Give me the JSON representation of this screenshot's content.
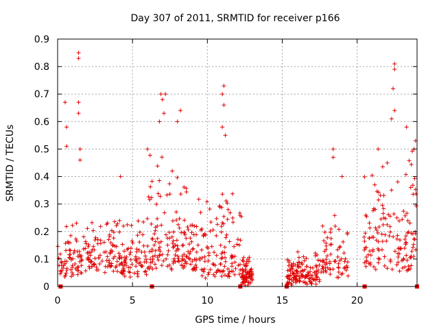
{
  "chart_data": {
    "type": "scatter",
    "title": "Day 307 of 2011, SRMTID for receiver p166",
    "xlabel": "GPS time / hours",
    "ylabel": "SRMTID / TECUs",
    "xlim": [
      0,
      24
    ],
    "ylim": [
      0,
      0.9
    ],
    "x_ticks": [
      "0",
      "5",
      "10",
      "15",
      "20"
    ],
    "y_ticks": [
      "0",
      "0.1",
      "0.2",
      "0.3",
      "0.4",
      "0.5",
      "0.6",
      "0.7",
      "0.8",
      "0.9"
    ],
    "grid": true,
    "marker": "+",
    "color": "#e00000",
    "baseline_markers_x": [
      0.2,
      6.3,
      12.2,
      15.3,
      20.5,
      24.0
    ],
    "clusters": [
      {
        "x_range": [
          0.0,
          1.8
        ],
        "y_range": [
          0.03,
          0.25
        ],
        "count": 70
      },
      {
        "x_range": [
          1.8,
          4.0
        ],
        "y_range": [
          0.05,
          0.28
        ],
        "count": 90
      },
      {
        "x_range": [
          4.0,
          6.0
        ],
        "y_range": [
          0.03,
          0.3
        ],
        "count": 85
      },
      {
        "x_range": [
          6.0,
          9.0
        ],
        "y_range": [
          0.05,
          0.55
        ],
        "count": 140
      },
      {
        "x_range": [
          9.0,
          11.0
        ],
        "y_range": [
          0.02,
          0.35
        ],
        "count": 80
      },
      {
        "x_range": [
          11.0,
          12.3
        ],
        "y_range": [
          0.02,
          0.4
        ],
        "count": 55
      },
      {
        "x_range": [
          12.3,
          13.0
        ],
        "y_range": [
          0.0,
          0.12
        ],
        "count": 70
      },
      {
        "x_range": [
          15.3,
          17.5
        ],
        "y_range": [
          0.0,
          0.12
        ],
        "count": 130
      },
      {
        "x_range": [
          17.5,
          19.5
        ],
        "y_range": [
          0.02,
          0.3
        ],
        "count": 70
      },
      {
        "x_range": [
          20.4,
          24.0
        ],
        "y_range": [
          0.05,
          0.5
        ],
        "count": 150
      }
    ],
    "peaks": [
      {
        "x": 0.5,
        "y": 0.67
      },
      {
        "x": 0.6,
        "y": 0.51
      },
      {
        "x": 0.6,
        "y": 0.58
      },
      {
        "x": 1.4,
        "y": 0.85
      },
      {
        "x": 1.4,
        "y": 0.83
      },
      {
        "x": 1.4,
        "y": 0.67
      },
      {
        "x": 1.4,
        "y": 0.63
      },
      {
        "x": 1.5,
        "y": 0.5
      },
      {
        "x": 1.5,
        "y": 0.46
      },
      {
        "x": 4.2,
        "y": 0.4
      },
      {
        "x": 6.0,
        "y": 0.5
      },
      {
        "x": 6.9,
        "y": 0.7
      },
      {
        "x": 7.0,
        "y": 0.68
      },
      {
        "x": 7.2,
        "y": 0.7
      },
      {
        "x": 7.1,
        "y": 0.63
      },
      {
        "x": 6.8,
        "y": 0.6
      },
      {
        "x": 8.2,
        "y": 0.64
      },
      {
        "x": 8.0,
        "y": 0.6
      },
      {
        "x": 11.0,
        "y": 0.7
      },
      {
        "x": 11.1,
        "y": 0.73
      },
      {
        "x": 11.1,
        "y": 0.66
      },
      {
        "x": 11.0,
        "y": 0.58
      },
      {
        "x": 11.2,
        "y": 0.55
      },
      {
        "x": 18.4,
        "y": 0.5
      },
      {
        "x": 18.4,
        "y": 0.47
      },
      {
        "x": 19.0,
        "y": 0.4
      },
      {
        "x": 21.4,
        "y": 0.5
      },
      {
        "x": 22.5,
        "y": 0.81
      },
      {
        "x": 22.5,
        "y": 0.79
      },
      {
        "x": 22.4,
        "y": 0.72
      },
      {
        "x": 22.5,
        "y": 0.64
      },
      {
        "x": 22.3,
        "y": 0.61
      },
      {
        "x": 23.3,
        "y": 0.58
      },
      {
        "x": 23.9,
        "y": 0.53
      },
      {
        "x": 23.8,
        "y": 0.5
      }
    ]
  }
}
